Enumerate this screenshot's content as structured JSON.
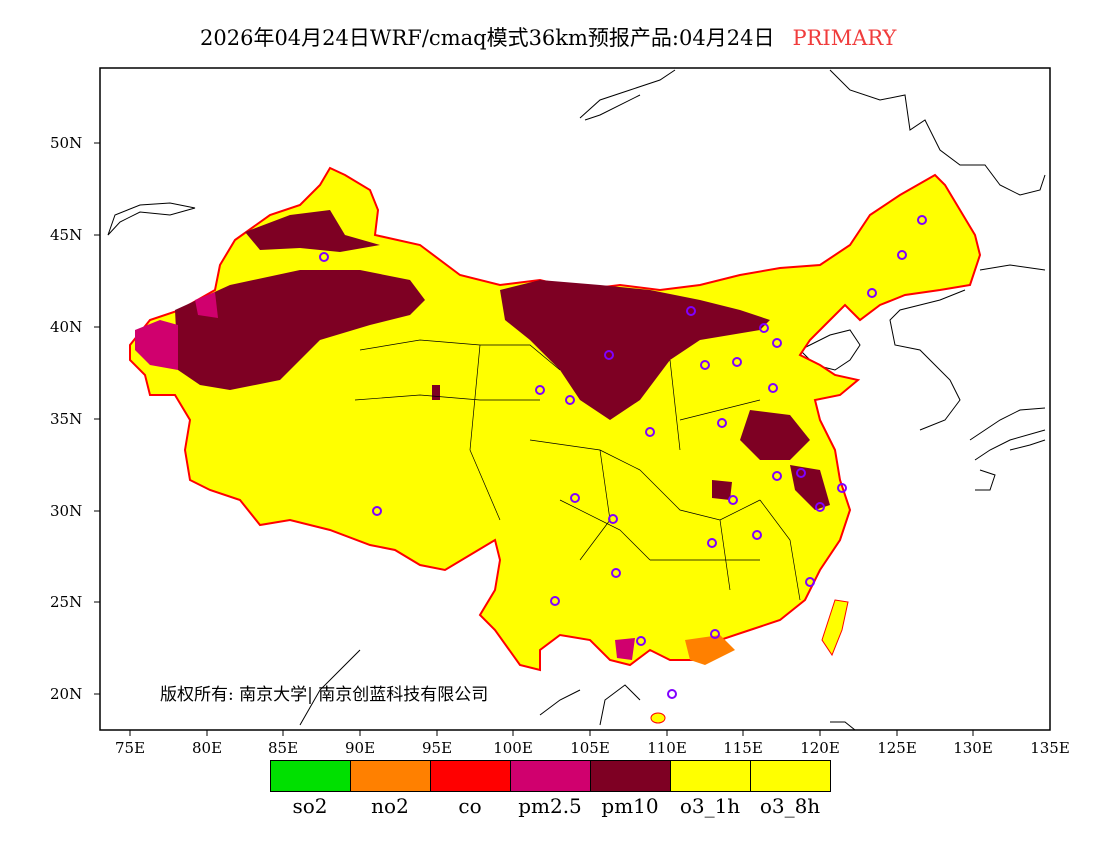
{
  "title": {
    "text": "2026年04月24日WRF/cmaq模式36km预报产品:04月24日",
    "tag": "PRIMARY",
    "tag_color": "#f03c3c"
  },
  "axes": {
    "lon_labels": [
      "75E",
      "80E",
      "85E",
      "90E",
      "95E",
      "100E",
      "105E",
      "110E",
      "115E",
      "120E",
      "125E",
      "130E",
      "135E"
    ],
    "lat_labels": [
      "50N",
      "45N",
      "40N",
      "35N",
      "30N",
      "25N",
      "20N"
    ]
  },
  "legend": [
    {
      "label": "so2",
      "color": "#00e000"
    },
    {
      "label": "no2",
      "color": "#ff8000"
    },
    {
      "label": "co",
      "color": "#ff0000"
    },
    {
      "label": "pm2.5",
      "color": "#d0006e"
    },
    {
      "label": "pm10",
      "color": "#7e0023"
    },
    {
      "label": "o3_1h",
      "color": "#ffff00"
    },
    {
      "label": "o3_8h",
      "color": "#ffff00"
    }
  ],
  "copyright": "版权所有: 南京大学| 南京创蓝科技有限公司"
}
